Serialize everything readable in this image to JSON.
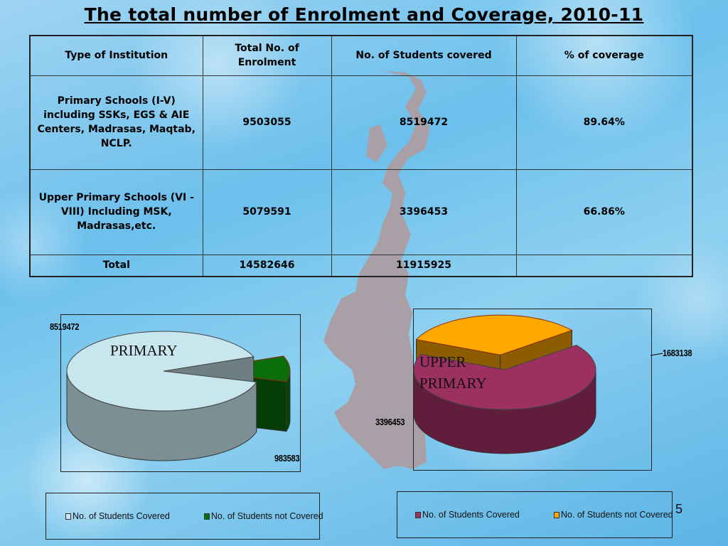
{
  "slide": {
    "title": "The total number of Enrolment and Coverage, 2010-11",
    "page_number": "5"
  },
  "table": {
    "headers": [
      "Type of Institution",
      "Total No. of Enrolment",
      "No. of Students covered",
      "% of coverage"
    ],
    "rows": [
      [
        "Primary Schools (I-V) including SSKs, EGS & AIE Centers, Madrasas, Maqtab, NCLP.",
        "9503055",
        "8519472",
        "89.64%"
      ],
      [
        "Upper Primary Schools (VI - VIII) Including MSK, Madrasas,etc.",
        "5079591",
        "3396453",
        "66.86%"
      ],
      [
        "Total",
        "14582646",
        "11915925",
        ""
      ]
    ]
  },
  "colors": {
    "map": "#a8a0a6",
    "primary_covered": "#c8e6ee",
    "primary_not_covered": "#0a6e0a",
    "upper_covered": "#9c3060",
    "upper_not_covered": "#ffa800"
  },
  "chart_data": [
    {
      "type": "pie",
      "name": "PRIMARY",
      "categories": [
        "No. of Students Covered",
        "No. of Students not Covered"
      ],
      "values": [
        8519472,
        983583
      ],
      "data_labels": [
        "8519472",
        "983583"
      ],
      "legend": "bottom",
      "exploded": "No. of Students not Covered"
    },
    {
      "type": "pie",
      "name": "UPPER PRIMARY",
      "categories": [
        "No. of Students Covered",
        "No. of Students not Covered"
      ],
      "values": [
        3396453,
        1683138
      ],
      "data_labels": [
        "3396453",
        "1683138"
      ],
      "legend": "bottom",
      "exploded": "No. of Students not Covered"
    }
  ]
}
